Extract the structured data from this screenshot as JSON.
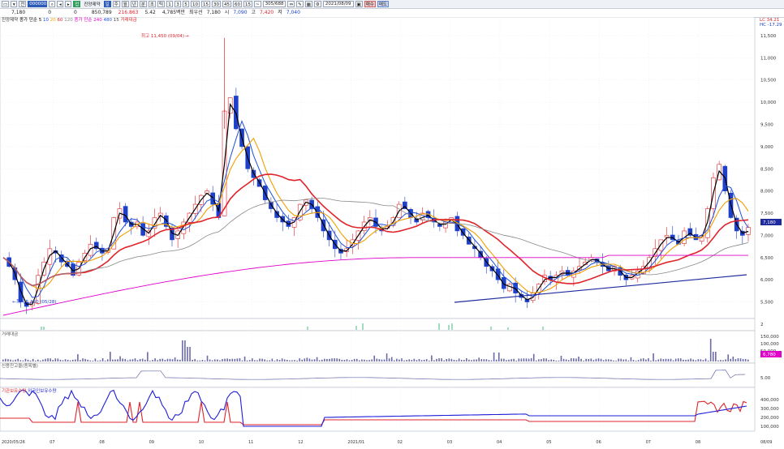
{
  "toolbar": {
    "code_input": "000000",
    "name": "진양제약",
    "periods": [
      "1",
      "3",
      "5",
      "10",
      "15",
      "30",
      "45",
      "60",
      "15",
      "~"
    ],
    "count": "305",
    "count_total": "688",
    "date": "2021/08/09",
    "buy_label": "매수",
    "sell_label": "매도"
  },
  "quote": {
    "price": "7,180",
    "change": "0",
    "change_rate": "0",
    "change_pct": "0",
    "volume": "850,789",
    "value": "216.863",
    "value_pct": "5.42",
    "shares_label": "4,785백만",
    "label_close": "최우선",
    "close": "7,180",
    "open_label": "시",
    "open": "7,090",
    "high_label": "고",
    "high": "7,420",
    "low_label": "저",
    "low": "7,040"
  },
  "main_legend": {
    "title": "진양제약",
    "items": [
      {
        "text": "종가 단순 5",
        "color": "#000000"
      },
      {
        "text": "10",
        "color": "#1e50d8"
      },
      {
        "text": "20",
        "color": "#f0a000"
      },
      {
        "text": "60",
        "color": "#e0242b"
      },
      {
        "text": "120",
        "color": "#888888"
      },
      {
        "text": "종가 단순 240",
        "color": "#e000c8"
      },
      {
        "text": "480",
        "color": "#1e50d8"
      },
      {
        "text": "15",
        "color": "#444444"
      },
      {
        "text": "거래대금",
        "color": "#e0242b"
      }
    ]
  },
  "right_labels": {
    "lc": "LC 34.21",
    "hc": "HC -17.29"
  },
  "price_axis": [
    "11,500",
    "11,000",
    "10,500",
    "10,000",
    "9,500",
    "9,000",
    "8,500",
    "8,000",
    "7,500",
    "7,000",
    "6,500",
    "6,000",
    "5,500"
  ],
  "price_tag": "7,180",
  "high_annotation": "최고 11,450 (09/04)",
  "low_annotation": "최저 5,360 (05/28)",
  "volume_legend": "거래대금",
  "volume_axis": [
    "150,000",
    "100,000",
    "50,000"
  ],
  "volume_tag": "6,780",
  "credit_legend": "신용잔고율(종목별)",
  "credit_axis": [
    "5.00"
  ],
  "flow_legend": {
    "a": "기관보유수량",
    "b": "외국인보유수량",
    "color_a": "#e0242b",
    "color_b": "#1e1ed8"
  },
  "flow_axis": [
    "400,000",
    "300,000",
    "200,000",
    "100,000"
  ],
  "signal_axis": "2",
  "date_axis": [
    "2020/05/26",
    "07",
    "08",
    "09",
    "10",
    "11",
    "12",
    "2021/01",
    "02",
    "03",
    "04",
    "05",
    "06",
    "07",
    "08",
    "08/09"
  ],
  "chart_data": {
    "type": "candlestick",
    "title": "진양제약",
    "x_start": "2020/05/26",
    "x_end": "2021/08/09",
    "ylim": [
      5200,
      11700
    ],
    "close_path": [
      6500,
      6300,
      6000,
      5500,
      5400,
      5500,
      6100,
      6400,
      6700,
      6600,
      6400,
      6300,
      6100,
      6400,
      6600,
      6800,
      6700,
      6600,
      6700,
      7400,
      7600,
      7300,
      7200,
      7300,
      7000,
      7100,
      7400,
      7500,
      7200,
      6900,
      7100,
      7300,
      7500,
      7700,
      7900,
      8000,
      7700,
      7400,
      9800,
      10100,
      9400,
      9000,
      8500,
      8300,
      8100,
      7800,
      7600,
      7400,
      7300,
      7200,
      7400,
      7700,
      7800,
      7600,
      7400,
      7100,
      6900,
      6700,
      6600,
      6700,
      6900,
      7100,
      7300,
      7400,
      7200,
      7100,
      7200,
      7400,
      7700,
      7600,
      7400,
      7300,
      7500,
      7400,
      7300,
      7200,
      7300,
      7400,
      7100,
      7000,
      6800,
      6700,
      6500,
      6300,
      6200,
      6000,
      5800,
      5900,
      5700,
      5600,
      5500,
      5700,
      5900,
      6100,
      6000,
      6100,
      6200,
      6100,
      6200,
      6300,
      6400,
      6500,
      6400,
      6300,
      6200,
      6300,
      6100,
      6000,
      6100,
      6200,
      6300,
      6500,
      6700,
      6900,
      7000,
      6900,
      6800,
      7100,
      7000,
      6900,
      7000,
      7600,
      8300,
      8600,
      8000,
      7400,
      7100,
      7000,
      7180
    ],
    "annotations": [
      "최고 11,450 (09/04)",
      "최저 5,360 (05/28)"
    ]
  }
}
